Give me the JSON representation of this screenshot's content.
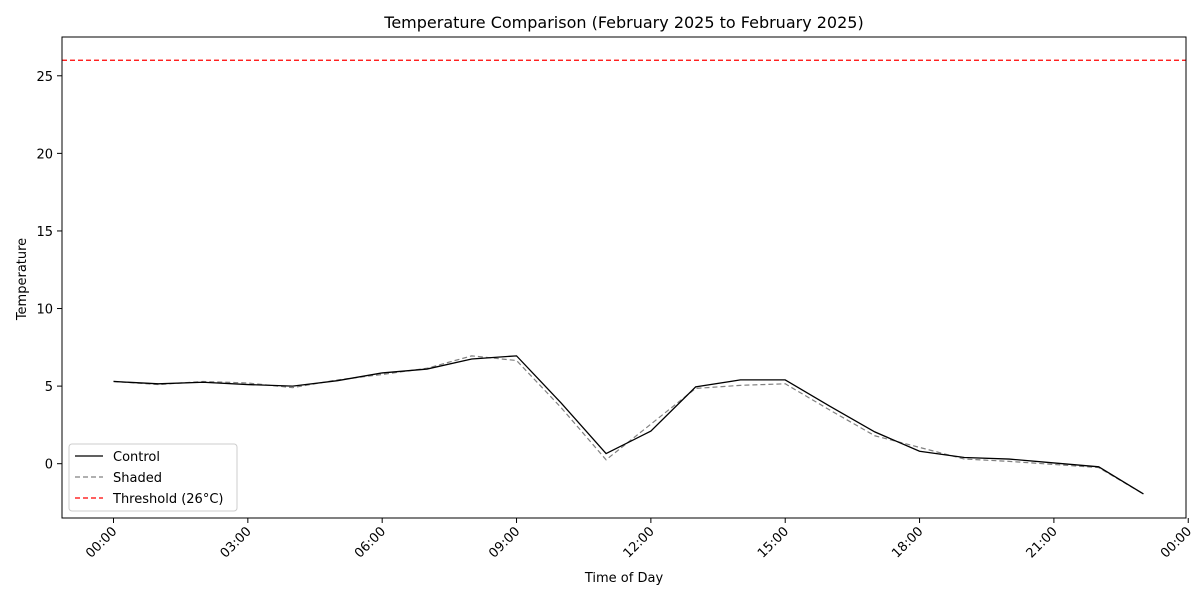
{
  "chart_data": {
    "type": "line",
    "title": "Temperature Comparison (February 2025 to February 2025)",
    "xlabel": "Time of Day",
    "ylabel": "Temperature",
    "x_hours": [
      0,
      1,
      2,
      3,
      4,
      5,
      6,
      7,
      8,
      9,
      10,
      11,
      12,
      13,
      14,
      15,
      16,
      17,
      18,
      19,
      20,
      21,
      22,
      23
    ],
    "xlim": [
      -1.15,
      23.95
    ],
    "ylim": [
      -3.5,
      27.5
    ],
    "x_ticks": [
      {
        "hour": 0,
        "label": "00:00"
      },
      {
        "hour": 3,
        "label": "03:00"
      },
      {
        "hour": 6,
        "label": "06:00"
      },
      {
        "hour": 9,
        "label": "09:00"
      },
      {
        "hour": 12,
        "label": "12:00"
      },
      {
        "hour": 15,
        "label": "15:00"
      },
      {
        "hour": 18,
        "label": "18:00"
      },
      {
        "hour": 21,
        "label": "21:00"
      },
      {
        "hour": 24,
        "label": "00:00"
      }
    ],
    "y_ticks": [
      {
        "value": 0,
        "label": "0"
      },
      {
        "value": 5,
        "label": "5"
      },
      {
        "value": 10,
        "label": "10"
      },
      {
        "value": 15,
        "label": "15"
      },
      {
        "value": 20,
        "label": "20"
      },
      {
        "value": 25,
        "label": "25"
      }
    ],
    "series": [
      {
        "name": "Control",
        "color": "#000000",
        "dash": "none",
        "values": [
          5.3,
          5.15,
          5.25,
          5.1,
          5.0,
          5.35,
          5.85,
          6.1,
          6.75,
          6.95,
          3.9,
          0.65,
          2.1,
          4.95,
          5.4,
          5.4,
          3.7,
          2.05,
          0.8,
          0.4,
          0.3,
          0.05,
          -0.2,
          -1.95
        ]
      },
      {
        "name": "Shaded",
        "color": "#808080",
        "dash": "5,3",
        "values": [
          5.3,
          5.1,
          5.3,
          5.2,
          4.9,
          5.4,
          5.75,
          6.15,
          6.95,
          6.65,
          3.6,
          0.25,
          2.55,
          4.85,
          5.05,
          5.15,
          3.45,
          1.8,
          1.05,
          0.3,
          0.15,
          -0.05,
          -0.25,
          -1.95
        ]
      }
    ],
    "threshold": {
      "name": "Threshold (26°C)",
      "value": 26,
      "color": "#ff0000",
      "dash": "5,3"
    },
    "legend": {
      "position": "lower-left",
      "entries": [
        "Control",
        "Shaded",
        "Threshold (26°C)"
      ]
    },
    "grid": false
  }
}
